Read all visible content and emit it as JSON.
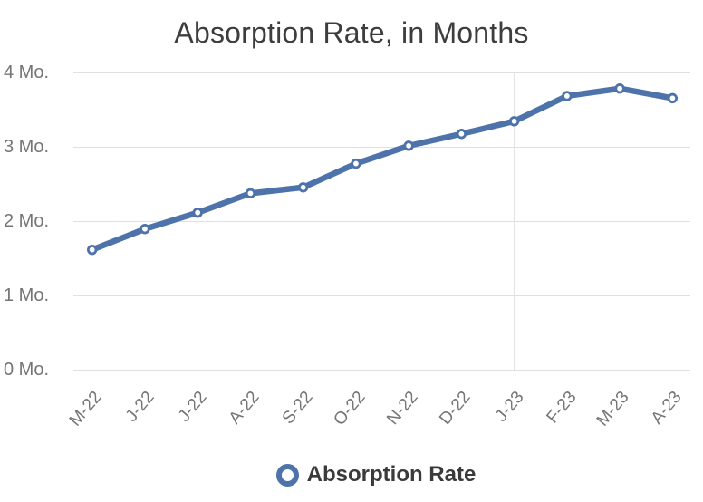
{
  "chart_data": {
    "type": "line",
    "title": "Absorption Rate, in Months",
    "x": [
      "M-22",
      "J-22",
      "J-22",
      "A-22",
      "S-22",
      "O-22",
      "N-22",
      "D-22",
      "J-23",
      "F-23",
      "M-23",
      "A-23"
    ],
    "series": [
      {
        "name": "Absorption Rate",
        "values": [
          1.62,
          1.9,
          2.12,
          2.38,
          2.46,
          2.78,
          3.02,
          3.18,
          3.35,
          3.69,
          3.79,
          3.66
        ]
      }
    ],
    "xlabel": "",
    "ylabel": "",
    "y_tick_labels": [
      "0 Mo.",
      "1 Mo.",
      "2 Mo.",
      "3 Mo.",
      "4 Mo."
    ],
    "y_tick_values": [
      0,
      1,
      2,
      3,
      4
    ],
    "ylim": [
      0,
      4
    ],
    "grid": "horizontal gridlines at each whole month value; one vertical gridline at J-23",
    "vertical_gridline_at": "J-23",
    "marker_style": "open-circle",
    "legend_position": "bottom",
    "colors": {
      "line": "#4e73aa",
      "marker_fill": "#ffffff",
      "grid": "#e0e0e0",
      "title_text": "#3d3d3d",
      "axis_text": "#757575",
      "legend_text": "#3a3a3a",
      "background": "#ffffff"
    }
  },
  "legend": {
    "label": "Absorption Rate"
  }
}
